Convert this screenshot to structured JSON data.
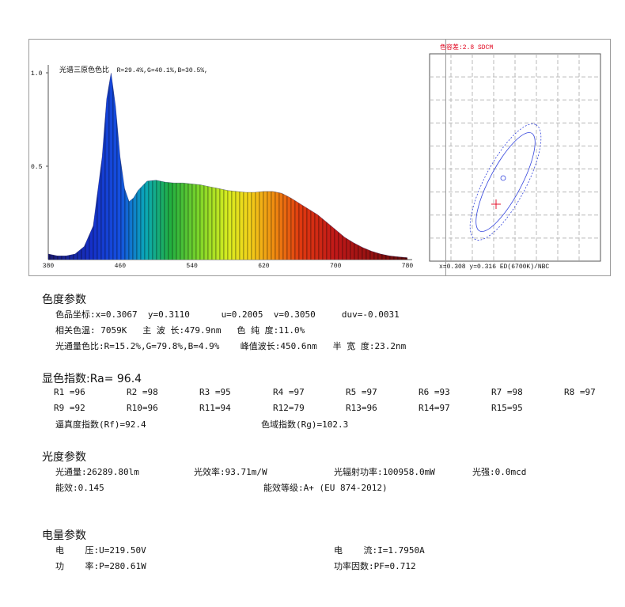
{
  "spectrum": {
    "caption_label": "光谱三原色色比",
    "caption_values": "R=29.4%,G=40.1%,B=30.5%,",
    "y_ticks": [
      "1.0",
      "0.5"
    ],
    "x_ticks": [
      "380",
      "460",
      "540",
      "620",
      "700",
      "780"
    ]
  },
  "chart_data": {
    "type": "area",
    "x": [
      380,
      390,
      400,
      410,
      420,
      430,
      440,
      445,
      450,
      455,
      460,
      465,
      470,
      475,
      480,
      490,
      500,
      510,
      520,
      530,
      540,
      550,
      560,
      570,
      580,
      590,
      600,
      610,
      620,
      630,
      640,
      650,
      660,
      670,
      680,
      690,
      700,
      710,
      720,
      730,
      740,
      750,
      760,
      770,
      780
    ],
    "y": [
      0.03,
      0.02,
      0.02,
      0.03,
      0.07,
      0.18,
      0.55,
      0.86,
      1.0,
      0.82,
      0.55,
      0.38,
      0.31,
      0.33,
      0.37,
      0.42,
      0.425,
      0.415,
      0.41,
      0.41,
      0.405,
      0.4,
      0.39,
      0.38,
      0.37,
      0.365,
      0.36,
      0.36,
      0.365,
      0.365,
      0.355,
      0.33,
      0.3,
      0.27,
      0.24,
      0.2,
      0.16,
      0.12,
      0.09,
      0.065,
      0.045,
      0.03,
      0.02,
      0.015,
      0.01
    ],
    "xlim": [
      380,
      780
    ],
    "ylim": [
      0,
      1.0
    ]
  },
  "cie": {
    "title": "色容差:2.8 SDCM",
    "footer": "x=0.308 y=0.316 ED(6700K)/NBC"
  },
  "chromaticity": {
    "heading": "色度参数",
    "line1": "色品坐标:x=0.3067  y=0.3110      u=0.2005  v=0.3050     duv=-0.0031",
    "line2": "相关色温: 7059K   主 波 长:479.9nm   色 纯 度:11.0%",
    "line3": "光通量色比:R=15.2%,G=79.8%,B=4.9%    峰值波长:450.6nm   半 宽 度:23.2nm"
  },
  "color_rendering": {
    "heading": "显色指数:Ra= 96.4",
    "r_values": [
      "R1 =96",
      "R2 =98",
      "R3 =95",
      "R4 =97",
      "R5 =97",
      "R6 =93",
      "R7 =98",
      "R8 =97",
      "R9 =92",
      "R10=96",
      "R11=94",
      "R12=79",
      "R13=96",
      "R14=97",
      "R15=95"
    ],
    "rf": "逼真度指数(Rf)=92.4",
    "rg": "色域指数(Rg)=102.3"
  },
  "photometric": {
    "heading": "光度参数",
    "flux": "光通量:26289.80lm",
    "efficacy": "光效率:93.71m/W",
    "radiant": "光辐射功率:100958.0mW",
    "intensity": "光强:0.0mcd",
    "energy_eff": "能效:0.145",
    "energy_class": "能效等级:A+ (EU 874-2012)"
  },
  "electrical": {
    "heading": "电量参数",
    "voltage": "电    压:U=219.50V",
    "current": "电    流:I=1.7950A",
    "power": "功    率:P=280.61W",
    "pf": "功率因数:PF=0.712"
  },
  "colors": {
    "accent_red": "#e0001a",
    "ellipse_blue": "#3344dd",
    "grid_gray": "#b8b8b8",
    "frame_gray": "#9a9a9a"
  }
}
